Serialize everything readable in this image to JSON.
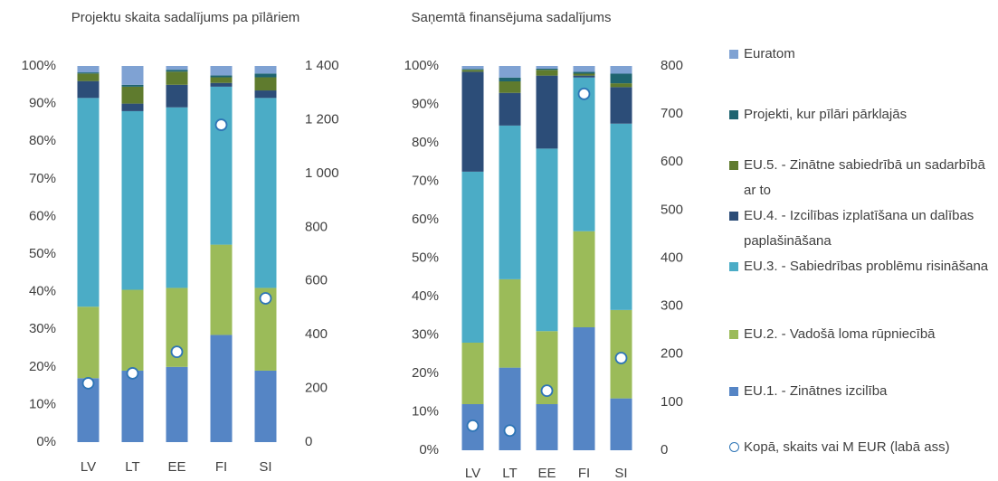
{
  "chart_data": [
    {
      "type": "bar",
      "stacked": true,
      "title": "Projektu skaita sadalījums pa pīlāriem",
      "categories": [
        "LV",
        "LT",
        "EE",
        "FI",
        "SI"
      ],
      "series": [
        {
          "name": "EU.1. - Zinātnes izcilība",
          "color": "#5585c5",
          "values": [
            17,
            19,
            20,
            28.5,
            19
          ]
        },
        {
          "name": "EU.2. - Vadošā loma rūpniecībā",
          "color": "#9bbb59",
          "values": [
            19,
            21.5,
            21,
            24,
            22
          ]
        },
        {
          "name": "EU.3. - Sabiedrības problēmu risināšana",
          "color": "#4bacc6",
          "values": [
            55.5,
            47.5,
            48,
            42,
            50.5
          ]
        },
        {
          "name": "EU.4. - Izcilības izplatīšana un dalības paplašināšana",
          "color": "#2c4d78",
          "values": [
            4.5,
            2,
            6,
            1,
            2
          ]
        },
        {
          "name": "EU.5. - Zinātne sabiedrībā un sadarbībā ar to",
          "color": "#5f7b2e",
          "values": [
            2,
            4.5,
            3.5,
            1.5,
            3.5
          ]
        },
        {
          "name": "Projekti, kur pīlāri pārklajās",
          "color": "#1f6470",
          "values": [
            0.3,
            0.5,
            0.5,
            0.5,
            1
          ]
        },
        {
          "name": "Euratom",
          "color": "#7fa2d3",
          "values": [
            1.7,
            5,
            1,
            2.5,
            2
          ]
        },
        {
          "name": "Kopā, skaits vai M EUR (labā ass)",
          "type": "scatter",
          "axis": "y2",
          "color": "#2e75b6",
          "values": [
            219,
            256,
            336,
            1181,
            535
          ]
        }
      ],
      "ylim": [
        0,
        100
      ],
      "yticks": [
        {
          "value": 0,
          "label": "0%"
        },
        {
          "value": 10,
          "label": "10%"
        },
        {
          "value": 20,
          "label": "20%"
        },
        {
          "value": 30,
          "label": "30%"
        },
        {
          "value": 40,
          "label": "40%"
        },
        {
          "value": 50,
          "label": "50%"
        },
        {
          "value": 60,
          "label": "60%"
        },
        {
          "value": 70,
          "label": "70%"
        },
        {
          "value": 80,
          "label": "80%"
        },
        {
          "value": 90,
          "label": "90%"
        },
        {
          "value": 100,
          "label": "100%"
        }
      ],
      "y2lim": [
        0,
        1400
      ],
      "y2ticks": [
        0,
        200,
        400,
        600,
        800,
        {
          "value": 1000,
          "label": "1 000"
        },
        {
          "value": 1200,
          "label": "1 200"
        },
        {
          "value": 1400,
          "label": "1 400"
        }
      ]
    },
    {
      "type": "bar",
      "stacked": true,
      "title": "Saņemtā finansējuma sadalījums",
      "categories": [
        "LV",
        "LT",
        "EE",
        "FI",
        "SI"
      ],
      "series": [
        {
          "name": "EU.1. - Zinātnes izcilība",
          "color": "#5585c5",
          "values": [
            12,
            21.5,
            12,
            32,
            13.5
          ]
        },
        {
          "name": "EU.2. - Vadošā loma rūpniecībā",
          "color": "#9bbb59",
          "values": [
            16,
            23,
            19,
            25,
            23
          ]
        },
        {
          "name": "EU.3. - Sabiedrības problēmu risināšana",
          "color": "#4bacc6",
          "values": [
            44.5,
            40,
            47.5,
            40,
            48.5
          ]
        },
        {
          "name": "EU.4. - Izcilības izplatīšana un dalības paplašināšana",
          "color": "#2c4d78",
          "values": [
            26,
            8.5,
            19,
            0.5,
            9.5
          ]
        },
        {
          "name": "EU.5. - Zinātne sabiedrībā un sadarbībā ar to",
          "color": "#5f7b2e",
          "values": [
            0.5,
            3,
            1.5,
            0.5,
            1
          ]
        },
        {
          "name": "Projekti, kur pīlāri pārklajās",
          "color": "#1f6470",
          "values": [
            0.2,
            1,
            0.3,
            0.5,
            2.5
          ]
        },
        {
          "name": "Euratom",
          "color": "#7fa2d3",
          "values": [
            0.8,
            3,
            0.7,
            1.5,
            2
          ]
        },
        {
          "name": "Kopā, skaits vai M EUR (labā ass)",
          "type": "scatter",
          "axis": "y2",
          "color": "#2e75b6",
          "values": [
            51,
            41,
            124,
            742,
            192
          ]
        }
      ],
      "ylim": [
        0,
        100
      ],
      "yticks": [
        {
          "value": 0,
          "label": "0%"
        },
        {
          "value": 10,
          "label": "10%"
        },
        {
          "value": 20,
          "label": "20%"
        },
        {
          "value": 30,
          "label": "30%"
        },
        {
          "value": 40,
          "label": "40%"
        },
        {
          "value": 50,
          "label": "50%"
        },
        {
          "value": 60,
          "label": "60%"
        },
        {
          "value": 70,
          "label": "70%"
        },
        {
          "value": 80,
          "label": "80%"
        },
        {
          "value": 90,
          "label": "90%"
        },
        {
          "value": 100,
          "label": "100%"
        }
      ],
      "y2lim": [
        0,
        800
      ],
      "y2ticks": [
        0,
        100,
        200,
        300,
        400,
        500,
        600,
        700,
        800
      ]
    }
  ]
}
